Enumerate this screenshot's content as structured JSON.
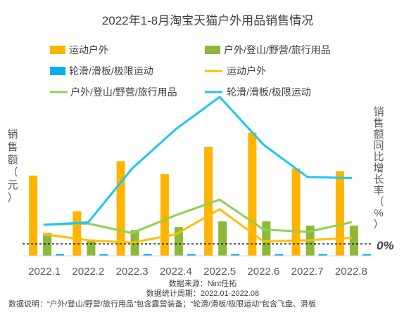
{
  "chart_data": {
    "type": "bar",
    "title": "2022年1-8月淘宝天猫户外用品销售情况",
    "categories": [
      "2022.1",
      "2022.2",
      "2022.3",
      "2022.4",
      "2022.5",
      "2022.6",
      "2022.7",
      "2022.8"
    ],
    "ylabel": "销售额（元）",
    "y2label": "销售额同比增长率（%）",
    "y2_zero_label": "0%",
    "ylim": [
      0,
      100
    ],
    "y2lim": [
      -10,
      110
    ],
    "legend_position": "top",
    "series": [
      {
        "name": "运动户外",
        "kind": "bar",
        "axis": "left",
        "color": "#FFB400",
        "values": [
          56,
          31,
          66,
          57,
          76,
          86,
          61,
          59
        ]
      },
      {
        "name": "户外/登山/野营/旅行用品",
        "kind": "bar",
        "axis": "left",
        "color": "#8DB83A",
        "values": [
          16,
          11,
          18,
          20,
          24,
          24,
          21,
          21
        ]
      },
      {
        "name": "轮滑/滑板/极限运动",
        "kind": "bar",
        "axis": "left",
        "color": "#00B0F0",
        "values": [
          1.2,
          1.2,
          1.2,
          1.2,
          1.2,
          1.2,
          1.2,
          1.2
        ]
      },
      {
        "name": "运动户外",
        "kind": "line",
        "axis": "right",
        "color": "#FFC000",
        "values": [
          8,
          3,
          1,
          8,
          29,
          2,
          3,
          5
        ]
      },
      {
        "name": "户外/登山/野营/旅行用品",
        "kind": "line",
        "axis": "right",
        "color": "#92D050",
        "values": [
          16,
          17,
          9,
          24,
          37,
          12,
          10,
          18
        ]
      },
      {
        "name": "轮滑/滑板/极限运动",
        "kind": "line",
        "axis": "right",
        "color": "#1EC5F5",
        "values": [
          16,
          18,
          63,
          96,
          123,
          83,
          56,
          55
        ]
      }
    ]
  },
  "footer": {
    "source": "数据来源：Nint任拓",
    "period": "数据统计周期：2022.01-2022.08",
    "note": "数据说明：“户外/登山/野营/旅行用品”包含露营装备；“轮滑/滑板/极限运动”包含飞盘、滑板"
  }
}
